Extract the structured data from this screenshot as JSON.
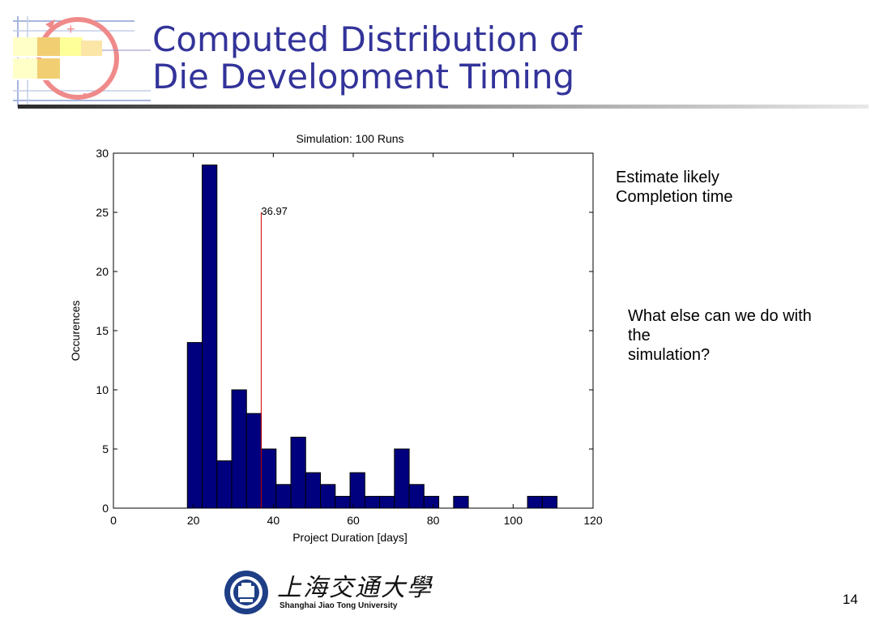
{
  "slide": {
    "title_line1": "Computed Distribution of",
    "title_line2": "Die Development Timing",
    "note1_line1": "Estimate likely",
    "note1_line2": "Completion time",
    "note2_line1": "What else can we do with",
    "note2_line2": "the",
    "note2_line3": "simulation?",
    "page_number": "14",
    "footer_cn": "上海交通大學",
    "footer_en": "Shanghai Jiao Tong University"
  },
  "colors": {
    "bar_fill": "#00007f",
    "marker": "#d00000",
    "title": "#33339a"
  },
  "chart_data": {
    "type": "bar",
    "title": "Simulation: 100 Runs",
    "xlabel": "Project Duration [days]",
    "ylabel": "Occurences",
    "xlim": [
      0,
      120
    ],
    "ylim": [
      0,
      30
    ],
    "xticks": [
      0,
      20,
      40,
      60,
      80,
      100,
      120
    ],
    "yticks": [
      0,
      5,
      10,
      15,
      20,
      25,
      30
    ],
    "bin_width": 3.7,
    "bins": [
      {
        "start": 18.5,
        "count": 14
      },
      {
        "start": 22.2,
        "count": 29
      },
      {
        "start": 25.9,
        "count": 4
      },
      {
        "start": 29.6,
        "count": 10
      },
      {
        "start": 33.3,
        "count": 8
      },
      {
        "start": 37.0,
        "count": 5
      },
      {
        "start": 40.7,
        "count": 2
      },
      {
        "start": 44.4,
        "count": 6
      },
      {
        "start": 48.1,
        "count": 3
      },
      {
        "start": 51.8,
        "count": 2
      },
      {
        "start": 55.5,
        "count": 1
      },
      {
        "start": 59.2,
        "count": 3
      },
      {
        "start": 62.9,
        "count": 1
      },
      {
        "start": 66.6,
        "count": 1
      },
      {
        "start": 70.3,
        "count": 5
      },
      {
        "start": 74.0,
        "count": 2
      },
      {
        "start": 77.7,
        "count": 1
      },
      {
        "start": 85.1,
        "count": 1
      },
      {
        "start": 103.6,
        "count": 1
      },
      {
        "start": 107.3,
        "count": 1
      }
    ],
    "mean_marker": {
      "x": 36.97,
      "y_top": 25,
      "label": "36.97"
    }
  }
}
